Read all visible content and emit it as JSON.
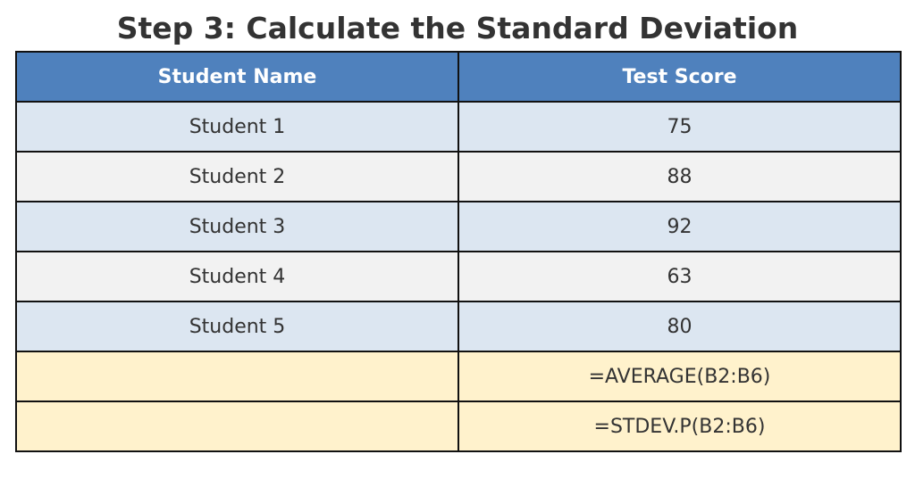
{
  "title": "Step 3: Calculate the Standard Deviation",
  "chart_data": {
    "type": "table",
    "title": "Step 3: Calculate the Standard Deviation",
    "columns": [
      "Student Name",
      "Test Score"
    ],
    "rows": [
      [
        "Student 1",
        "75"
      ],
      [
        "Student 2",
        "88"
      ],
      [
        "Student 3",
        "92"
      ],
      [
        "Student 4",
        "63"
      ],
      [
        "Student 5",
        "80"
      ],
      [
        "",
        "=AVERAGE(B2:B6)"
      ],
      [
        "",
        "=STDEV.P(B2:B6)"
      ]
    ]
  },
  "colors": {
    "header_bg": "#4f81bd",
    "row_blue": "#dce6f1",
    "row_gray": "#f2f2f2",
    "row_formula": "#fff2cc"
  }
}
